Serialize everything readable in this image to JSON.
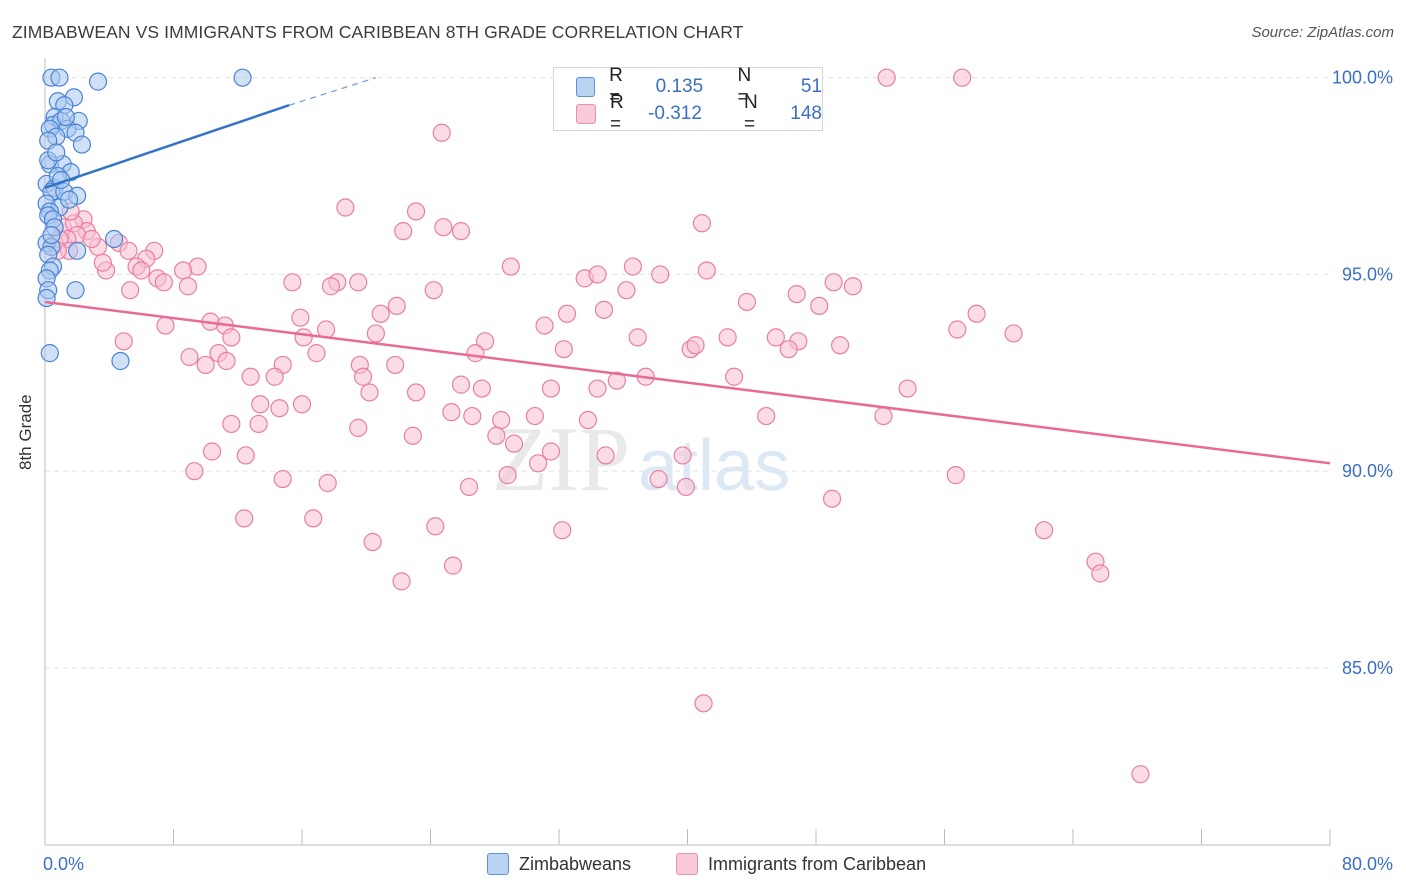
{
  "title": "ZIMBABWEAN VS IMMIGRANTS FROM CARIBBEAN 8TH GRADE CORRELATION CHART",
  "source": "Source: ZipAtlas.com",
  "watermark": {
    "zip": "ZIP",
    "atlas": "atlas"
  },
  "legend": {
    "r_label": "R =",
    "n_label": "N =",
    "series1": {
      "r": "0.135",
      "n": "51"
    },
    "series2": {
      "r": "-0.312",
      "n": "148"
    }
  },
  "colors": {
    "blue_fill": "#a9c8f0",
    "blue_stroke": "#4a84d4",
    "blue_line": "#3472c8",
    "pink_fill": "#f7c0d2",
    "pink_stroke": "#e87fa3",
    "pink_line": "#e76a97",
    "axis_text": "#3a6fc4"
  },
  "chart_data": {
    "type": "scatter",
    "title": "ZIMBABWEAN VS IMMIGRANTS FROM CARIBBEAN 8TH GRADE CORRELATION CHART",
    "xlabel": "",
    "ylabel": "8th Grade",
    "xlim": [
      0,
      80
    ],
    "ylim": [
      80.5,
      100.5
    ],
    "x_tick_labels": [
      "0.0%",
      "80.0%"
    ],
    "y_ticks": [
      85,
      90,
      95,
      100
    ],
    "y_tick_labels": [
      "85.0%",
      "90.0%",
      "95.0%",
      "100.0%"
    ],
    "grid": true,
    "series": [
      {
        "name": "Zimbabweans",
        "r": 0.135,
        "n": 51,
        "trend": {
          "x0": 0,
          "y0": 97.2,
          "x1": 15.2,
          "y1": 99.3,
          "dash_x1": 20.6,
          "dash_y1": 100.0
        },
        "points": [
          [
            0.4,
            100.0
          ],
          [
            0.9,
            100.0
          ],
          [
            3.3,
            99.9
          ],
          [
            12.3,
            100.0
          ],
          [
            0.8,
            99.4
          ],
          [
            1.8,
            99.5
          ],
          [
            1.2,
            99.3
          ],
          [
            0.6,
            99.0
          ],
          [
            0.5,
            98.8
          ],
          [
            1.0,
            98.9
          ],
          [
            2.1,
            98.9
          ],
          [
            0.3,
            98.7
          ],
          [
            1.4,
            98.7
          ],
          [
            1.9,
            98.6
          ],
          [
            0.7,
            98.5
          ],
          [
            0.2,
            98.4
          ],
          [
            2.3,
            98.3
          ],
          [
            0.3,
            97.8
          ],
          [
            1.1,
            97.8
          ],
          [
            1.6,
            97.6
          ],
          [
            0.1,
            97.3
          ],
          [
            0.6,
            97.2
          ],
          [
            0.4,
            97.1
          ],
          [
            1.2,
            97.1
          ],
          [
            2.0,
            97.0
          ],
          [
            0.1,
            96.8
          ],
          [
            0.9,
            96.7
          ],
          [
            0.3,
            96.6
          ],
          [
            0.2,
            96.5
          ],
          [
            0.5,
            96.4
          ],
          [
            4.3,
            95.9
          ],
          [
            0.1,
            95.8
          ],
          [
            0.4,
            95.7
          ],
          [
            2.0,
            95.6
          ],
          [
            0.2,
            95.5
          ],
          [
            0.5,
            95.2
          ],
          [
            0.3,
            95.1
          ],
          [
            0.1,
            94.9
          ],
          [
            0.2,
            94.6
          ],
          [
            1.9,
            94.6
          ],
          [
            0.1,
            94.4
          ],
          [
            0.3,
            93.0
          ],
          [
            4.7,
            92.8
          ],
          [
            0.8,
            97.5
          ],
          [
            0.6,
            96.2
          ],
          [
            1.0,
            97.4
          ],
          [
            0.4,
            96.0
          ],
          [
            1.5,
            96.9
          ],
          [
            0.2,
            97.9
          ],
          [
            0.7,
            98.1
          ],
          [
            1.3,
            99.0
          ]
        ]
      },
      {
        "name": "Immigrants from Caribbean",
        "r": -0.312,
        "n": 148,
        "trend": {
          "x0": 0,
          "y0": 94.3,
          "x1": 80,
          "y1": 90.2
        },
        "points": [
          [
            52.4,
            100.0
          ],
          [
            57.1,
            100.0
          ],
          [
            24.7,
            98.6
          ],
          [
            18.7,
            96.7
          ],
          [
            23.1,
            96.6
          ],
          [
            22.3,
            96.1
          ],
          [
            24.8,
            96.2
          ],
          [
            25.9,
            96.1
          ],
          [
            40.9,
            96.3
          ],
          [
            2.4,
            96.4
          ],
          [
            2.6,
            96.1
          ],
          [
            1.1,
            96.2
          ],
          [
            1.8,
            96.3
          ],
          [
            2.0,
            96.0
          ],
          [
            1.4,
            95.9
          ],
          [
            0.6,
            95.8
          ],
          [
            0.9,
            95.9
          ],
          [
            3.3,
            95.7
          ],
          [
            1.5,
            95.6
          ],
          [
            0.8,
            95.6
          ],
          [
            4.6,
            95.8
          ],
          [
            5.2,
            95.6
          ],
          [
            6.8,
            95.6
          ],
          [
            6.3,
            95.4
          ],
          [
            9.5,
            95.2
          ],
          [
            5.7,
            95.2
          ],
          [
            3.8,
            95.1
          ],
          [
            8.6,
            95.1
          ],
          [
            7.0,
            94.9
          ],
          [
            7.4,
            94.8
          ],
          [
            6.0,
            95.1
          ],
          [
            15.4,
            94.8
          ],
          [
            18.2,
            94.8
          ],
          [
            17.8,
            94.7
          ],
          [
            33.6,
            94.9
          ],
          [
            36.6,
            95.2
          ],
          [
            41.2,
            95.1
          ],
          [
            34.4,
            95.0
          ],
          [
            38.3,
            95.0
          ],
          [
            29.0,
            95.2
          ],
          [
            49.1,
            94.8
          ],
          [
            50.3,
            94.7
          ],
          [
            5.3,
            94.6
          ],
          [
            8.9,
            94.7
          ],
          [
            24.2,
            94.6
          ],
          [
            19.5,
            94.8
          ],
          [
            46.8,
            94.5
          ],
          [
            36.2,
            94.6
          ],
          [
            43.7,
            94.3
          ],
          [
            48.2,
            94.2
          ],
          [
            21.9,
            94.2
          ],
          [
            34.8,
            94.1
          ],
          [
            20.9,
            94.0
          ],
          [
            32.5,
            94.0
          ],
          [
            15.9,
            93.9
          ],
          [
            7.5,
            93.7
          ],
          [
            11.2,
            93.7
          ],
          [
            10.3,
            93.8
          ],
          [
            17.5,
            93.6
          ],
          [
            31.1,
            93.7
          ],
          [
            20.6,
            93.5
          ],
          [
            4.9,
            93.3
          ],
          [
            11.6,
            93.4
          ],
          [
            16.1,
            93.4
          ],
          [
            27.4,
            93.3
          ],
          [
            36.9,
            93.4
          ],
          [
            42.5,
            93.4
          ],
          [
            45.5,
            93.4
          ],
          [
            46.9,
            93.3
          ],
          [
            49.5,
            93.2
          ],
          [
            56.8,
            93.6
          ],
          [
            58.0,
            94.0
          ],
          [
            60.3,
            93.5
          ],
          [
            26.8,
            93.0
          ],
          [
            9.0,
            92.9
          ],
          [
            10.8,
            93.0
          ],
          [
            16.9,
            93.0
          ],
          [
            32.3,
            93.1
          ],
          [
            40.2,
            93.1
          ],
          [
            40.5,
            93.2
          ],
          [
            46.3,
            93.1
          ],
          [
            10.0,
            92.7
          ],
          [
            11.3,
            92.8
          ],
          [
            14.8,
            92.7
          ],
          [
            19.6,
            92.7
          ],
          [
            21.8,
            92.7
          ],
          [
            12.8,
            92.4
          ],
          [
            14.3,
            92.4
          ],
          [
            19.8,
            92.4
          ],
          [
            35.6,
            92.3
          ],
          [
            37.4,
            92.4
          ],
          [
            25.9,
            92.2
          ],
          [
            27.2,
            92.1
          ],
          [
            31.5,
            92.1
          ],
          [
            34.4,
            92.1
          ],
          [
            20.2,
            92.0
          ],
          [
            23.1,
            92.0
          ],
          [
            42.9,
            92.4
          ],
          [
            53.7,
            92.1
          ],
          [
            14.6,
            91.6
          ],
          [
            13.4,
            91.7
          ],
          [
            16.0,
            91.7
          ],
          [
            25.3,
            91.5
          ],
          [
            28.4,
            91.3
          ],
          [
            26.6,
            91.4
          ],
          [
            30.5,
            91.4
          ],
          [
            33.8,
            91.3
          ],
          [
            44.9,
            91.4
          ],
          [
            11.6,
            91.2
          ],
          [
            13.3,
            91.2
          ],
          [
            19.5,
            91.1
          ],
          [
            22.9,
            90.9
          ],
          [
            28.1,
            90.9
          ],
          [
            52.2,
            91.4
          ],
          [
            29.2,
            90.7
          ],
          [
            10.4,
            90.5
          ],
          [
            12.5,
            90.4
          ],
          [
            31.5,
            90.5
          ],
          [
            34.9,
            90.4
          ],
          [
            39.7,
            90.4
          ],
          [
            30.7,
            90.2
          ],
          [
            9.3,
            90.0
          ],
          [
            14.8,
            89.8
          ],
          [
            17.6,
            89.7
          ],
          [
            28.8,
            89.9
          ],
          [
            38.2,
            89.8
          ],
          [
            39.9,
            89.6
          ],
          [
            26.4,
            89.6
          ],
          [
            56.7,
            89.9
          ],
          [
            49.0,
            89.3
          ],
          [
            12.4,
            88.8
          ],
          [
            16.7,
            88.8
          ],
          [
            24.3,
            88.6
          ],
          [
            32.2,
            88.5
          ],
          [
            20.4,
            88.2
          ],
          [
            62.2,
            88.5
          ],
          [
            65.4,
            87.7
          ],
          [
            65.7,
            87.4
          ],
          [
            25.4,
            87.6
          ],
          [
            22.2,
            87.2
          ],
          [
            41.0,
            84.1
          ],
          [
            68.2,
            82.3
          ],
          [
            1.6,
            96.6
          ],
          [
            3.6,
            95.3
          ],
          [
            2.9,
            95.9
          ]
        ]
      }
    ]
  },
  "bottom_legend": {
    "series1_label": "Zimbabweans",
    "series2_label": "Immigrants from Caribbean"
  }
}
